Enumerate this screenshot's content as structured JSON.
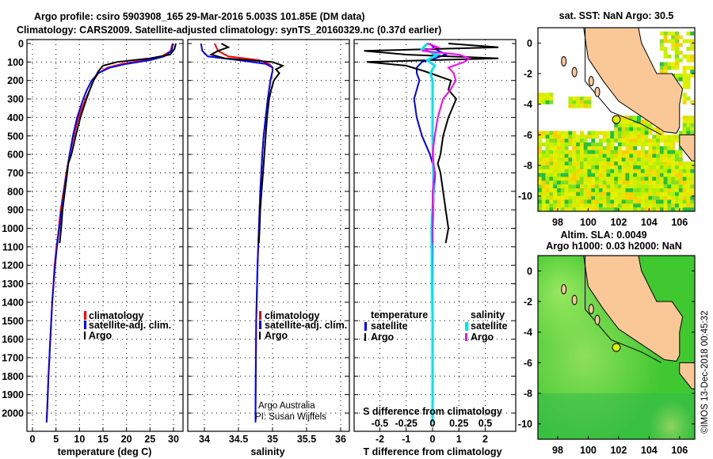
{
  "title": {
    "line1": "Argo profile: csiro 5903908_165 29-Mar-2016 5.003S 101.85E (DM data)",
    "line2": "Climatology: CARS2009. Satellite-adjusted climatology: synTS_20160329.nc (0.37d earlier)"
  },
  "footer": {
    "credit": "©IMOS 13-Dec-2018 00:45:32",
    "argo_australia": "Argo Australia",
    "pi": "PI: Susan Wijffels"
  },
  "colors": {
    "argo": "#000000",
    "climatology": "#ff0000",
    "satellite": "#0000ff",
    "salinity_satellite": "#00e5ee",
    "salinity_argo": "#ff00ff",
    "land": "#f9c896"
  },
  "chart_data": [
    {
      "type": "line",
      "name": "temperature-profile",
      "xlabel": "temperature (deg C)",
      "ylabel": "",
      "xlim": [
        -1.2,
        31.8
      ],
      "ylim": [
        2100,
        -20
      ],
      "xticks": [
        "0",
        "5",
        "10",
        "15",
        "20",
        "25",
        "30"
      ],
      "xtick_values": [
        0,
        5,
        10,
        15,
        20,
        25,
        30
      ],
      "yticks": [
        "0",
        "100",
        "200",
        "300",
        "400",
        "500",
        "600",
        "700",
        "800",
        "900",
        "1000",
        "1100",
        "1200",
        "1300",
        "1400",
        "1500",
        "1600",
        "1700",
        "1800",
        "1900",
        "2000"
      ],
      "legend": [
        "climatology",
        "satellite-adj. clim.",
        "Argo"
      ],
      "legend_position": "bottom-right",
      "grid": true,
      "series": [
        {
          "name": "climatology",
          "color": "#ff0000",
          "depth": [
            0,
            40,
            70,
            90,
            110,
            130,
            160,
            200,
            250,
            300,
            400,
            500,
            600,
            700,
            800,
            900,
            1000,
            1100,
            1200,
            1400,
            1600,
            1800,
            2000,
            2050
          ],
          "values": [
            29.8,
            29.4,
            27.5,
            24,
            19,
            16,
            14,
            13,
            12.2,
            11.3,
            9.8,
            8.8,
            7.9,
            7.2,
            6.6,
            6.0,
            5.6,
            5.1,
            4.7,
            4.2,
            3.8,
            3.4,
            3.1,
            3.0
          ]
        },
        {
          "name": "satellite-adj. clim.",
          "color": "#0000ff",
          "depth": [
            0,
            40,
            70,
            90,
            110,
            130,
            160,
            200,
            250,
            300,
            400,
            500,
            600,
            700,
            800,
            900,
            1000,
            1100,
            1200,
            1400,
            1600,
            1800,
            2000,
            2050
          ],
          "values": [
            29.9,
            29.6,
            28,
            25,
            20,
            16.5,
            14,
            12.6,
            11.6,
            10.8,
            9.5,
            8.6,
            7.9,
            7.3,
            6.7,
            6.2,
            5.7,
            5.2,
            4.8,
            4.2,
            3.8,
            3.4,
            3.1,
            3.0
          ]
        },
        {
          "name": "Argo",
          "color": "#000000",
          "depth": [
            0,
            30,
            60,
            80,
            100,
            120,
            150,
            180,
            200,
            250,
            300,
            400,
            500,
            600,
            650,
            700,
            800,
            900,
            1000,
            1080
          ],
          "values": [
            30.5,
            30.2,
            29.3,
            25,
            18,
            15,
            14,
            13.4,
            13,
            12.2,
            11.5,
            10.2,
            9.2,
            8.3,
            7.6,
            7.4,
            6.9,
            6.4,
            6.1,
            5.8
          ]
        }
      ]
    },
    {
      "type": "line",
      "name": "salinity-profile",
      "xlabel": "salinity",
      "xlim": [
        33.76,
        36.13
      ],
      "ylim": [
        2100,
        -20
      ],
      "xticks": [
        "34",
        "34.5",
        "35",
        "35.5",
        "36"
      ],
      "xtick_values": [
        34,
        34.5,
        35,
        35.5,
        36
      ],
      "legend": [
        "climatology",
        "satellite-adj. clim.",
        "Argo"
      ],
      "legend_position": "bottom-right",
      "grid": true,
      "series": [
        {
          "name": "climatology",
          "color": "#ff0000",
          "depth": [
            0,
            40,
            70,
            90,
            110,
            130,
            150,
            200,
            300,
            400,
            500,
            600,
            800,
            1000,
            1200,
            1500,
            2000,
            2050
          ],
          "values": [
            34.15,
            34.2,
            34.35,
            34.8,
            34.95,
            35.0,
            35.0,
            34.97,
            34.93,
            34.9,
            34.87,
            34.85,
            34.82,
            34.8,
            34.78,
            34.76,
            34.75,
            34.75
          ]
        },
        {
          "name": "satellite-adj. clim.",
          "color": "#0000ff",
          "depth": [
            0,
            40,
            70,
            90,
            110,
            130,
            150,
            200,
            300,
            400,
            500,
            600,
            800,
            1000,
            1200,
            1500,
            2000,
            2050
          ],
          "values": [
            33.95,
            33.97,
            34.05,
            34.5,
            34.9,
            35.0,
            35.0,
            34.97,
            34.93,
            34.9,
            34.87,
            34.85,
            34.82,
            34.8,
            34.78,
            34.76,
            34.75,
            34.75
          ]
        },
        {
          "name": "Argo",
          "color": "#000000",
          "depth": [
            0,
            20,
            40,
            60,
            80,
            100,
            120,
            140,
            160,
            200,
            250,
            300,
            400,
            500,
            600,
            700,
            800,
            900,
            1000,
            1080
          ],
          "values": [
            34.25,
            34.35,
            34.2,
            34.1,
            34.3,
            35.0,
            35.15,
            35.05,
            35.1,
            35.02,
            34.98,
            34.95,
            34.92,
            34.9,
            34.88,
            34.86,
            34.84,
            34.82,
            34.81,
            34.8
          ]
        }
      ]
    },
    {
      "type": "line",
      "name": "difference-profile",
      "xlabel": "T difference from climatology",
      "x2label": "S difference from climatology",
      "xlim": [
        -2.98,
        3.15
      ],
      "xticks": [
        "-2",
        "-1",
        "0",
        "1",
        "2"
      ],
      "xtick_values": [
        -2,
        -1,
        0,
        1,
        2
      ],
      "x2ticks": [
        "-0.5",
        "-0.25",
        "0",
        "0.25",
        "0.5"
      ],
      "x2tick_values": [
        -0.5,
        -0.25,
        0,
        0.25,
        0.5
      ],
      "legend_temperature": {
        "title": "temperature",
        "items": [
          "satellite",
          "Argo"
        ]
      },
      "legend_salinity": {
        "title": "salinity",
        "items": [
          "satellite",
          "Argo"
        ]
      },
      "grid": true,
      "series": [
        {
          "name": "T satellite",
          "color": "#0000ff",
          "axis": "T",
          "depth": [
            0,
            30,
            60,
            80,
            100,
            130,
            160,
            200,
            250,
            300,
            400,
            500,
            600,
            700,
            800,
            1000,
            1200,
            1500,
            2000,
            2050
          ],
          "values": [
            -0.1,
            0.1,
            0.5,
            0.1,
            -0.4,
            -0.6,
            -0.6,
            -0.5,
            -0.6,
            -0.7,
            -0.6,
            -0.4,
            -0.1,
            0.1,
            0.05,
            0,
            0,
            0,
            0,
            0
          ]
        },
        {
          "name": "T Argo",
          "color": "#000000",
          "axis": "T",
          "depth": [
            0,
            20,
            40,
            60,
            80,
            100,
            120,
            150,
            200,
            250,
            300,
            400,
            500,
            600,
            650,
            700,
            800,
            900,
            1000,
            1080
          ],
          "values": [
            0.6,
            2.5,
            -2.6,
            -1,
            2.5,
            -2.5,
            -1,
            -0.3,
            0.7,
            0.6,
            0.9,
            0.6,
            0.4,
            0.3,
            0.2,
            0.3,
            0.4,
            0.5,
            0.6,
            0.5
          ]
        },
        {
          "name": "S satellite",
          "color": "#00e5ee",
          "axis": "S",
          "depth": [
            0,
            30,
            60,
            90,
            120,
            160,
            200,
            300,
            500,
            800,
            1000,
            1500,
            2050
          ],
          "values": [
            -0.05,
            -0.1,
            0.05,
            -0.05,
            0.02,
            -0.02,
            0,
            0,
            0,
            0.01,
            -0.01,
            0,
            0
          ]
        },
        {
          "name": "S Argo",
          "color": "#ff00ff",
          "axis": "S",
          "depth": [
            0,
            20,
            40,
            60,
            80,
            100,
            130,
            160,
            200,
            250,
            300,
            400,
            500,
            600,
            700,
            800,
            1000,
            1080
          ],
          "values": [
            -0.05,
            0.05,
            -0.1,
            0.25,
            0.35,
            0.3,
            0.15,
            0.2,
            0.22,
            0.17,
            0.1,
            0.05,
            0.02,
            0.0,
            0.02,
            0.0,
            0.0,
            0.0
          ]
        }
      ]
    },
    {
      "type": "heatmap",
      "name": "sst-map",
      "title": "sat. SST: NaN Argo: 30.5",
      "xlim": [
        96.7,
        107
      ],
      "ylim": [
        -11,
        1
      ],
      "xticks": [
        "98",
        "100",
        "102",
        "104",
        "106"
      ],
      "xtick_values": [
        98,
        100,
        102,
        104,
        106
      ],
      "yticks": [
        "0",
        "-2",
        "-4",
        "-6",
        "-8",
        "-10"
      ],
      "ytick_values": [
        0,
        -2,
        -4,
        -6,
        -8,
        -10
      ],
      "argo_position": [
        101.85,
        -5.003
      ]
    },
    {
      "type": "heatmap",
      "name": "sla-map",
      "title_line1": "Altim. SLA: 0.0049",
      "title_line2": "Argo h1000: 0.03 h2000: NaN",
      "xlim": [
        96.7,
        107
      ],
      "ylim": [
        -11,
        1
      ],
      "xticks": [
        "98",
        "100",
        "102",
        "104",
        "106"
      ],
      "xtick_values": [
        98,
        100,
        102,
        104,
        106
      ],
      "yticks": [
        "0",
        "-2",
        "-4",
        "-6",
        "-8",
        "-10"
      ],
      "ytick_values": [
        0,
        -2,
        -4,
        -6,
        -8,
        -10
      ],
      "argo_position": [
        101.85,
        -5.003
      ]
    }
  ]
}
